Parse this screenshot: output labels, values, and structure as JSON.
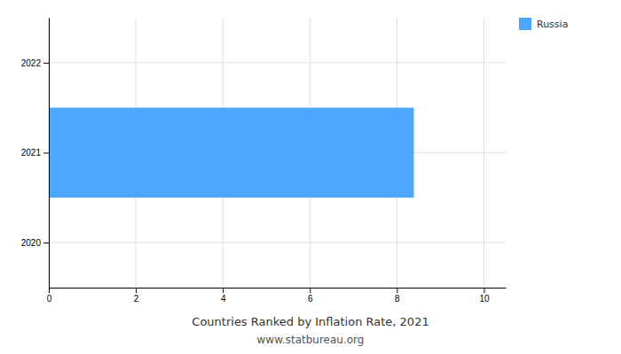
{
  "chart_data": {
    "type": "bar",
    "orientation": "horizontal",
    "title": "Countries Ranked by Inflation Rate, 2021",
    "subtitle": "www.statbureau.org",
    "series": [
      {
        "name": "Russia",
        "color": "#4da6ff",
        "values": [
          8.39
        ]
      }
    ],
    "categories": [
      2021
    ],
    "xlim": [
      0,
      10.5
    ],
    "xticks": [
      0,
      2,
      4,
      6,
      8,
      10
    ],
    "ylim": [
      2019.5,
      2022.5
    ],
    "yticks": [
      2020,
      2021,
      2022
    ],
    "grid": true,
    "legend": "right"
  }
}
